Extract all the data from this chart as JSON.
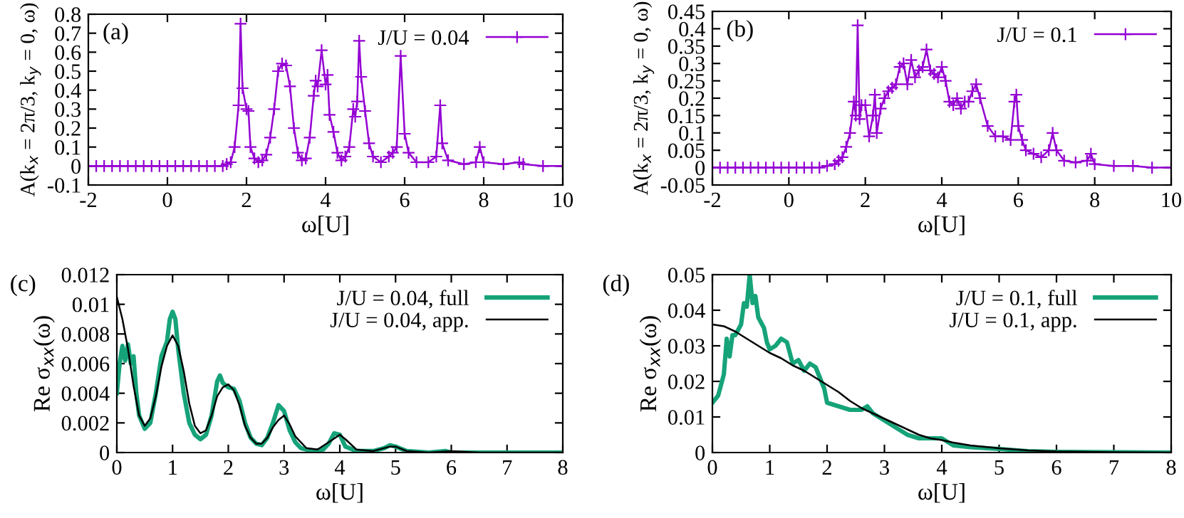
{
  "chart_data": [
    {
      "type": "line",
      "xlabel": "ω[U]",
      "ylabel": "A(k$_{x}$ = 2π/3, k$_{y}$ = 0, ω)",
      "annotations": [
        "(a)"
      ],
      "legend": "top right",
      "marker": "cross",
      "line_style": "solid",
      "grid": false,
      "xlim": [
        -2,
        10
      ],
      "xticks": [
        -2,
        0,
        2,
        4,
        6,
        8,
        10
      ],
      "ylim": [
        -0.1,
        0.8
      ],
      "yticks": [
        -0.1,
        0,
        0.1,
        0.2,
        0.3,
        0.4,
        0.5,
        0.6,
        0.7,
        0.8
      ],
      "series": [
        {
          "name": "J/U = 0.04",
          "color": "#9400d3",
          "x": [
            -2,
            -1.8,
            -1.6,
            -1.4,
            -1.2,
            -1,
            -0.8,
            -0.6,
            -0.4,
            -0.2,
            0,
            0.2,
            0.4,
            0.6,
            0.8,
            1,
            1.2,
            1.4,
            1.5,
            1.6,
            1.7,
            1.8,
            1.85,
            1.9,
            2.0,
            2.05,
            2.1,
            2.2,
            2.3,
            2.4,
            2.5,
            2.6,
            2.7,
            2.8,
            2.9,
            3.0,
            3.1,
            3.2,
            3.3,
            3.4,
            3.5,
            3.6,
            3.7,
            3.75,
            3.8,
            3.9,
            4.0,
            4.05,
            4.1,
            4.2,
            4.3,
            4.4,
            4.5,
            4.6,
            4.7,
            4.75,
            4.8,
            4.85,
            4.9,
            5.0,
            5.1,
            5.2,
            5.4,
            5.6,
            5.7,
            5.8,
            5.9,
            6.0,
            6.1,
            6.3,
            6.6,
            6.8,
            6.9,
            6.95,
            7.1,
            7.5,
            7.8,
            7.9,
            8.0,
            8.5,
            8.9,
            9.0,
            9.5,
            10
          ],
          "values": [
            0,
            0,
            0,
            0,
            0,
            0,
            0,
            0,
            0,
            0,
            0,
            0,
            0,
            0,
            0,
            0,
            0,
            0,
            0.01,
            0.02,
            0.1,
            0.32,
            0.75,
            0.41,
            0.3,
            0.29,
            0.1,
            0.04,
            0.02,
            0.03,
            0.06,
            0.15,
            0.3,
            0.5,
            0.54,
            0.53,
            0.42,
            0.2,
            0.07,
            0.03,
            0.04,
            0.15,
            0.37,
            0.45,
            0.42,
            0.61,
            0.43,
            0.48,
            0.27,
            0.18,
            0.07,
            0.03,
            0.05,
            0.1,
            0.3,
            0.26,
            0.34,
            0.66,
            0.47,
            0.29,
            0.12,
            0.05,
            0.02,
            0.05,
            0.07,
            0.1,
            0.58,
            0.17,
            0.07,
            0.02,
            0.02,
            0.05,
            0.32,
            0.12,
            0.03,
            0.01,
            0.02,
            0.1,
            0.02,
            0.01,
            0.02,
            0.01,
            0,
            0
          ]
        }
      ]
    },
    {
      "type": "line",
      "xlabel": "ω[U]",
      "ylabel": "A(k$_{x}$ = 2π/3, k$_{y}$ = 0, ω)",
      "annotations": [
        "(b)"
      ],
      "legend": "top right",
      "marker": "cross",
      "line_style": "solid",
      "grid": false,
      "xlim": [
        -2,
        10
      ],
      "xticks": [
        -2,
        0,
        2,
        4,
        6,
        8,
        10
      ],
      "ylim": [
        -0.05,
        0.45
      ],
      "yticks": [
        -0.05,
        0,
        0.05,
        0.1,
        0.15,
        0.2,
        0.25,
        0.3,
        0.35,
        0.4,
        0.45
      ],
      "series": [
        {
          "name": "J/U = 0.1",
          "color": "#9400d3",
          "x": [
            -2,
            -1.8,
            -1.6,
            -1.4,
            -1.2,
            -1,
            -0.8,
            -0.6,
            -0.4,
            -0.2,
            0,
            0.2,
            0.4,
            0.6,
            0.8,
            1.0,
            1.2,
            1.3,
            1.4,
            1.5,
            1.6,
            1.7,
            1.75,
            1.8,
            1.85,
            1.9,
            2.0,
            2.1,
            2.2,
            2.25,
            2.3,
            2.4,
            2.5,
            2.6,
            2.7,
            2.8,
            2.9,
            3.0,
            3.1,
            3.2,
            3.3,
            3.4,
            3.5,
            3.6,
            3.7,
            3.8,
            3.9,
            4.0,
            4.1,
            4.2,
            4.3,
            4.4,
            4.5,
            4.6,
            4.7,
            4.8,
            4.9,
            5.0,
            5.2,
            5.4,
            5.6,
            5.8,
            5.9,
            5.95,
            6.0,
            6.1,
            6.2,
            6.4,
            6.6,
            6.8,
            6.9,
            7.0,
            7.2,
            7.5,
            7.8,
            7.9,
            8.0,
            8.5,
            9.0,
            9.5,
            10
          ],
          "values": [
            0,
            0,
            0,
            0,
            0,
            0,
            0,
            0,
            0,
            0,
            0,
            0,
            0,
            0,
            0,
            0.005,
            0.01,
            0.02,
            0.03,
            0.06,
            0.1,
            0.19,
            0.15,
            0.41,
            0.14,
            0.18,
            0.18,
            0.09,
            0.15,
            0.21,
            0.1,
            0.17,
            0.2,
            0.22,
            0.23,
            0.24,
            0.29,
            0.3,
            0.24,
            0.31,
            0.26,
            0.28,
            0.29,
            0.34,
            0.28,
            0.27,
            0.26,
            0.29,
            0.25,
            0.19,
            0.18,
            0.2,
            0.17,
            0.19,
            0.19,
            0.22,
            0.24,
            0.2,
            0.12,
            0.09,
            0.09,
            0.08,
            0.19,
            0.21,
            0.12,
            0.08,
            0.05,
            0.04,
            0.03,
            0.05,
            0.1,
            0.05,
            0.02,
            0.015,
            0.02,
            0.04,
            0.01,
            0.005,
            0.005,
            0,
            0
          ]
        }
      ]
    },
    {
      "type": "line",
      "xlabel": "ω[U]",
      "ylabel": "Re σ$_{xx}$(ω)",
      "annotations": [
        "(c)"
      ],
      "legend": "top right",
      "line_style": "solid",
      "grid": false,
      "xlim": [
        0,
        8
      ],
      "xticks": [
        0,
        1,
        2,
        3,
        4,
        5,
        6,
        7,
        8
      ],
      "ylim": [
        0,
        0.012
      ],
      "yticks": [
        0,
        0.002,
        0.004,
        0.006,
        0.008,
        0.01,
        0.012
      ],
      "series": [
        {
          "name": "J/U = 0.04, full",
          "color": "#16a37a",
          "x": [
            0,
            0.05,
            0.1,
            0.15,
            0.2,
            0.25,
            0.3,
            0.35,
            0.4,
            0.5,
            0.6,
            0.7,
            0.8,
            0.9,
            0.95,
            1.0,
            1.05,
            1.1,
            1.2,
            1.3,
            1.4,
            1.5,
            1.6,
            1.7,
            1.8,
            1.85,
            1.9,
            2.0,
            2.1,
            2.2,
            2.3,
            2.4,
            2.5,
            2.6,
            2.7,
            2.8,
            2.9,
            3.0,
            3.1,
            3.2,
            3.3,
            3.5,
            3.7,
            3.8,
            3.9,
            4.0,
            4.1,
            4.3,
            4.6,
            4.8,
            4.9,
            5.0,
            5.2,
            5.6,
            5.9,
            6.0,
            6.5,
            7,
            8
          ],
          "values": [
            0.004,
            0.006,
            0.0072,
            0.0062,
            0.0073,
            0.006,
            0.0065,
            0.004,
            0.0025,
            0.0016,
            0.002,
            0.004,
            0.0065,
            0.0075,
            0.009,
            0.0095,
            0.009,
            0.007,
            0.004,
            0.002,
            0.0012,
            0.0009,
            0.0012,
            0.0025,
            0.0048,
            0.0052,
            0.0047,
            0.0044,
            0.0043,
            0.0035,
            0.002,
            0.001,
            0.0006,
            0.0005,
            0.001,
            0.002,
            0.0032,
            0.0028,
            0.0015,
            0.0007,
            0.0003,
            0.0001,
            0.0002,
            0.0006,
            0.0013,
            0.0012,
            0.0004,
            0.0001,
            0.0001,
            0.0003,
            0.0005,
            0.0004,
            0.0001,
            0,
            0.0001,
            0,
            0,
            0,
            0
          ]
        },
        {
          "name": "J/U = 0.04, app.",
          "color": "#000000",
          "x": [
            0,
            0.1,
            0.2,
            0.3,
            0.4,
            0.5,
            0.6,
            0.7,
            0.8,
            0.9,
            1.0,
            1.1,
            1.2,
            1.3,
            1.4,
            1.5,
            1.6,
            1.7,
            1.8,
            1.9,
            2.0,
            2.1,
            2.2,
            2.3,
            2.4,
            2.5,
            2.6,
            2.7,
            2.8,
            2.9,
            3.0,
            3.1,
            3.2,
            3.4,
            3.6,
            3.8,
            4.0,
            4.1,
            4.3,
            4.6,
            4.9,
            5.0,
            5.2,
            5.6,
            6.0,
            6.5,
            8
          ],
          "values": [
            0.0105,
            0.009,
            0.007,
            0.0045,
            0.0025,
            0.0018,
            0.0023,
            0.0038,
            0.0058,
            0.0072,
            0.0079,
            0.0072,
            0.0055,
            0.0033,
            0.0018,
            0.0013,
            0.0015,
            0.0025,
            0.0038,
            0.0044,
            0.0046,
            0.0042,
            0.0032,
            0.0018,
            0.001,
            0.0006,
            0.0006,
            0.001,
            0.0017,
            0.0022,
            0.0025,
            0.0019,
            0.0011,
            0.0003,
            0.0002,
            0.0007,
            0.0012,
            0.0009,
            0.0002,
            0.0001,
            0.0004,
            0.0004,
            0.0001,
            0,
            0.0001,
            0,
            0
          ]
        }
      ]
    },
    {
      "type": "line",
      "xlabel": "ω[U]",
      "ylabel": "Re σ$_{xx}$(ω)",
      "annotations": [
        "(d)"
      ],
      "legend": "top right",
      "line_style": "solid",
      "grid": false,
      "xlim": [
        0,
        8
      ],
      "xticks": [
        0,
        1,
        2,
        3,
        4,
        5,
        6,
        7,
        8
      ],
      "ylim": [
        0,
        0.05
      ],
      "yticks": [
        0,
        0.01,
        0.02,
        0.03,
        0.04,
        0.05
      ],
      "series": [
        {
          "name": "J/U = 0.1, full",
          "color": "#16a37a",
          "x": [
            0,
            0.1,
            0.2,
            0.25,
            0.3,
            0.35,
            0.4,
            0.5,
            0.55,
            0.6,
            0.65,
            0.7,
            0.75,
            0.8,
            0.9,
            0.95,
            1.0,
            1.1,
            1.2,
            1.3,
            1.4,
            1.5,
            1.6,
            1.7,
            1.8,
            1.9,
            1.95,
            2.0,
            2.2,
            2.4,
            2.6,
            2.7,
            2.8,
            3.0,
            3.2,
            3.4,
            3.6,
            3.8,
            4.0,
            4.2,
            4.5,
            4.8,
            5.0,
            5.5,
            6,
            7,
            8
          ],
          "values": [
            0.014,
            0.016,
            0.022,
            0.032,
            0.027,
            0.033,
            0.033,
            0.036,
            0.042,
            0.041,
            0.05,
            0.042,
            0.044,
            0.038,
            0.035,
            0.031,
            0.029,
            0.03,
            0.032,
            0.031,
            0.025,
            0.026,
            0.023,
            0.025,
            0.024,
            0.02,
            0.018,
            0.014,
            0.013,
            0.012,
            0.012,
            0.013,
            0.011,
            0.009,
            0.007,
            0.005,
            0.004,
            0.004,
            0.004,
            0.002,
            0.0015,
            0.0012,
            0.001,
            0.0004,
            0.0002,
            0.0001,
            0
          ]
        },
        {
          "name": "J/U = 0.1, app.",
          "color": "#000000",
          "x": [
            0,
            0.2,
            0.4,
            0.6,
            0.8,
            1.0,
            1.2,
            1.4,
            1.6,
            1.8,
            2.0,
            2.2,
            2.4,
            2.6,
            2.8,
            3.0,
            3.2,
            3.4,
            3.6,
            3.8,
            4.0,
            4.2,
            4.5,
            5.0,
            5.5,
            6.0,
            7.0,
            8.0
          ],
          "values": [
            0.036,
            0.0355,
            0.034,
            0.032,
            0.03,
            0.028,
            0.0265,
            0.0245,
            0.023,
            0.021,
            0.019,
            0.017,
            0.0145,
            0.0125,
            0.011,
            0.0095,
            0.008,
            0.0065,
            0.005,
            0.004,
            0.0035,
            0.0028,
            0.002,
            0.0012,
            0.0006,
            0.0003,
            0.0001,
            0
          ]
        }
      ]
    }
  ]
}
